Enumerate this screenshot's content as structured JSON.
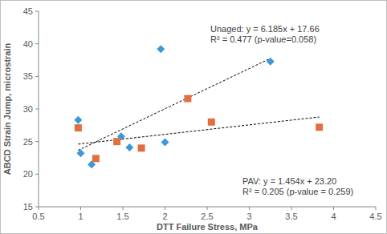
{
  "chart_data": {
    "type": "scatter",
    "x_label": "DTT Failure Stress, MPa",
    "y_label": "ABCD Strain Jump, microstrain",
    "xlim": [
      0.5,
      4.5
    ],
    "xticks": [
      0.5,
      1,
      1.5,
      2,
      2.5,
      3,
      3.5,
      4,
      4.5
    ],
    "ylim": [
      15,
      45
    ],
    "yticks": [
      15,
      20,
      25,
      30,
      35,
      40,
      45
    ],
    "grid": false,
    "series": [
      {
        "name": "Unaged",
        "color": "#3a9ad9",
        "marker": "diamond",
        "x": [
          0.97,
          1.0,
          1.13,
          1.48,
          1.58,
          1.95,
          2.0,
          3.25
        ],
        "values": [
          28.3,
          23.2,
          21.5,
          25.8,
          24.1,
          39.2,
          24.9,
          37.3
        ],
        "trend": {
          "line_style": "dashed",
          "x": [
            0.97,
            3.25
          ],
          "values": [
            23.66,
            37.76
          ]
        }
      },
      {
        "name": "PAV",
        "color": "#e0703f",
        "marker": "square",
        "x": [
          0.97,
          1.18,
          1.43,
          1.72,
          2.27,
          2.55,
          3.83
        ],
        "values": [
          27.1,
          22.4,
          25.0,
          24.0,
          31.6,
          28.0,
          27.2
        ],
        "trend": {
          "line_style": "dashed",
          "x": [
            0.97,
            3.83
          ],
          "values": [
            24.61,
            28.77
          ]
        }
      }
    ],
    "annotations": [
      {
        "series": 0,
        "lines": [
          "Unaged:  y = 6.185x + 17.66",
          "R² = 0.477 (p-value=0.058)"
        ]
      },
      {
        "series": 1,
        "lines": [
          "PAV:  y = 1.454x + 23.20",
          "R² = 0.205 (p-value = 0.259)"
        ]
      }
    ]
  }
}
